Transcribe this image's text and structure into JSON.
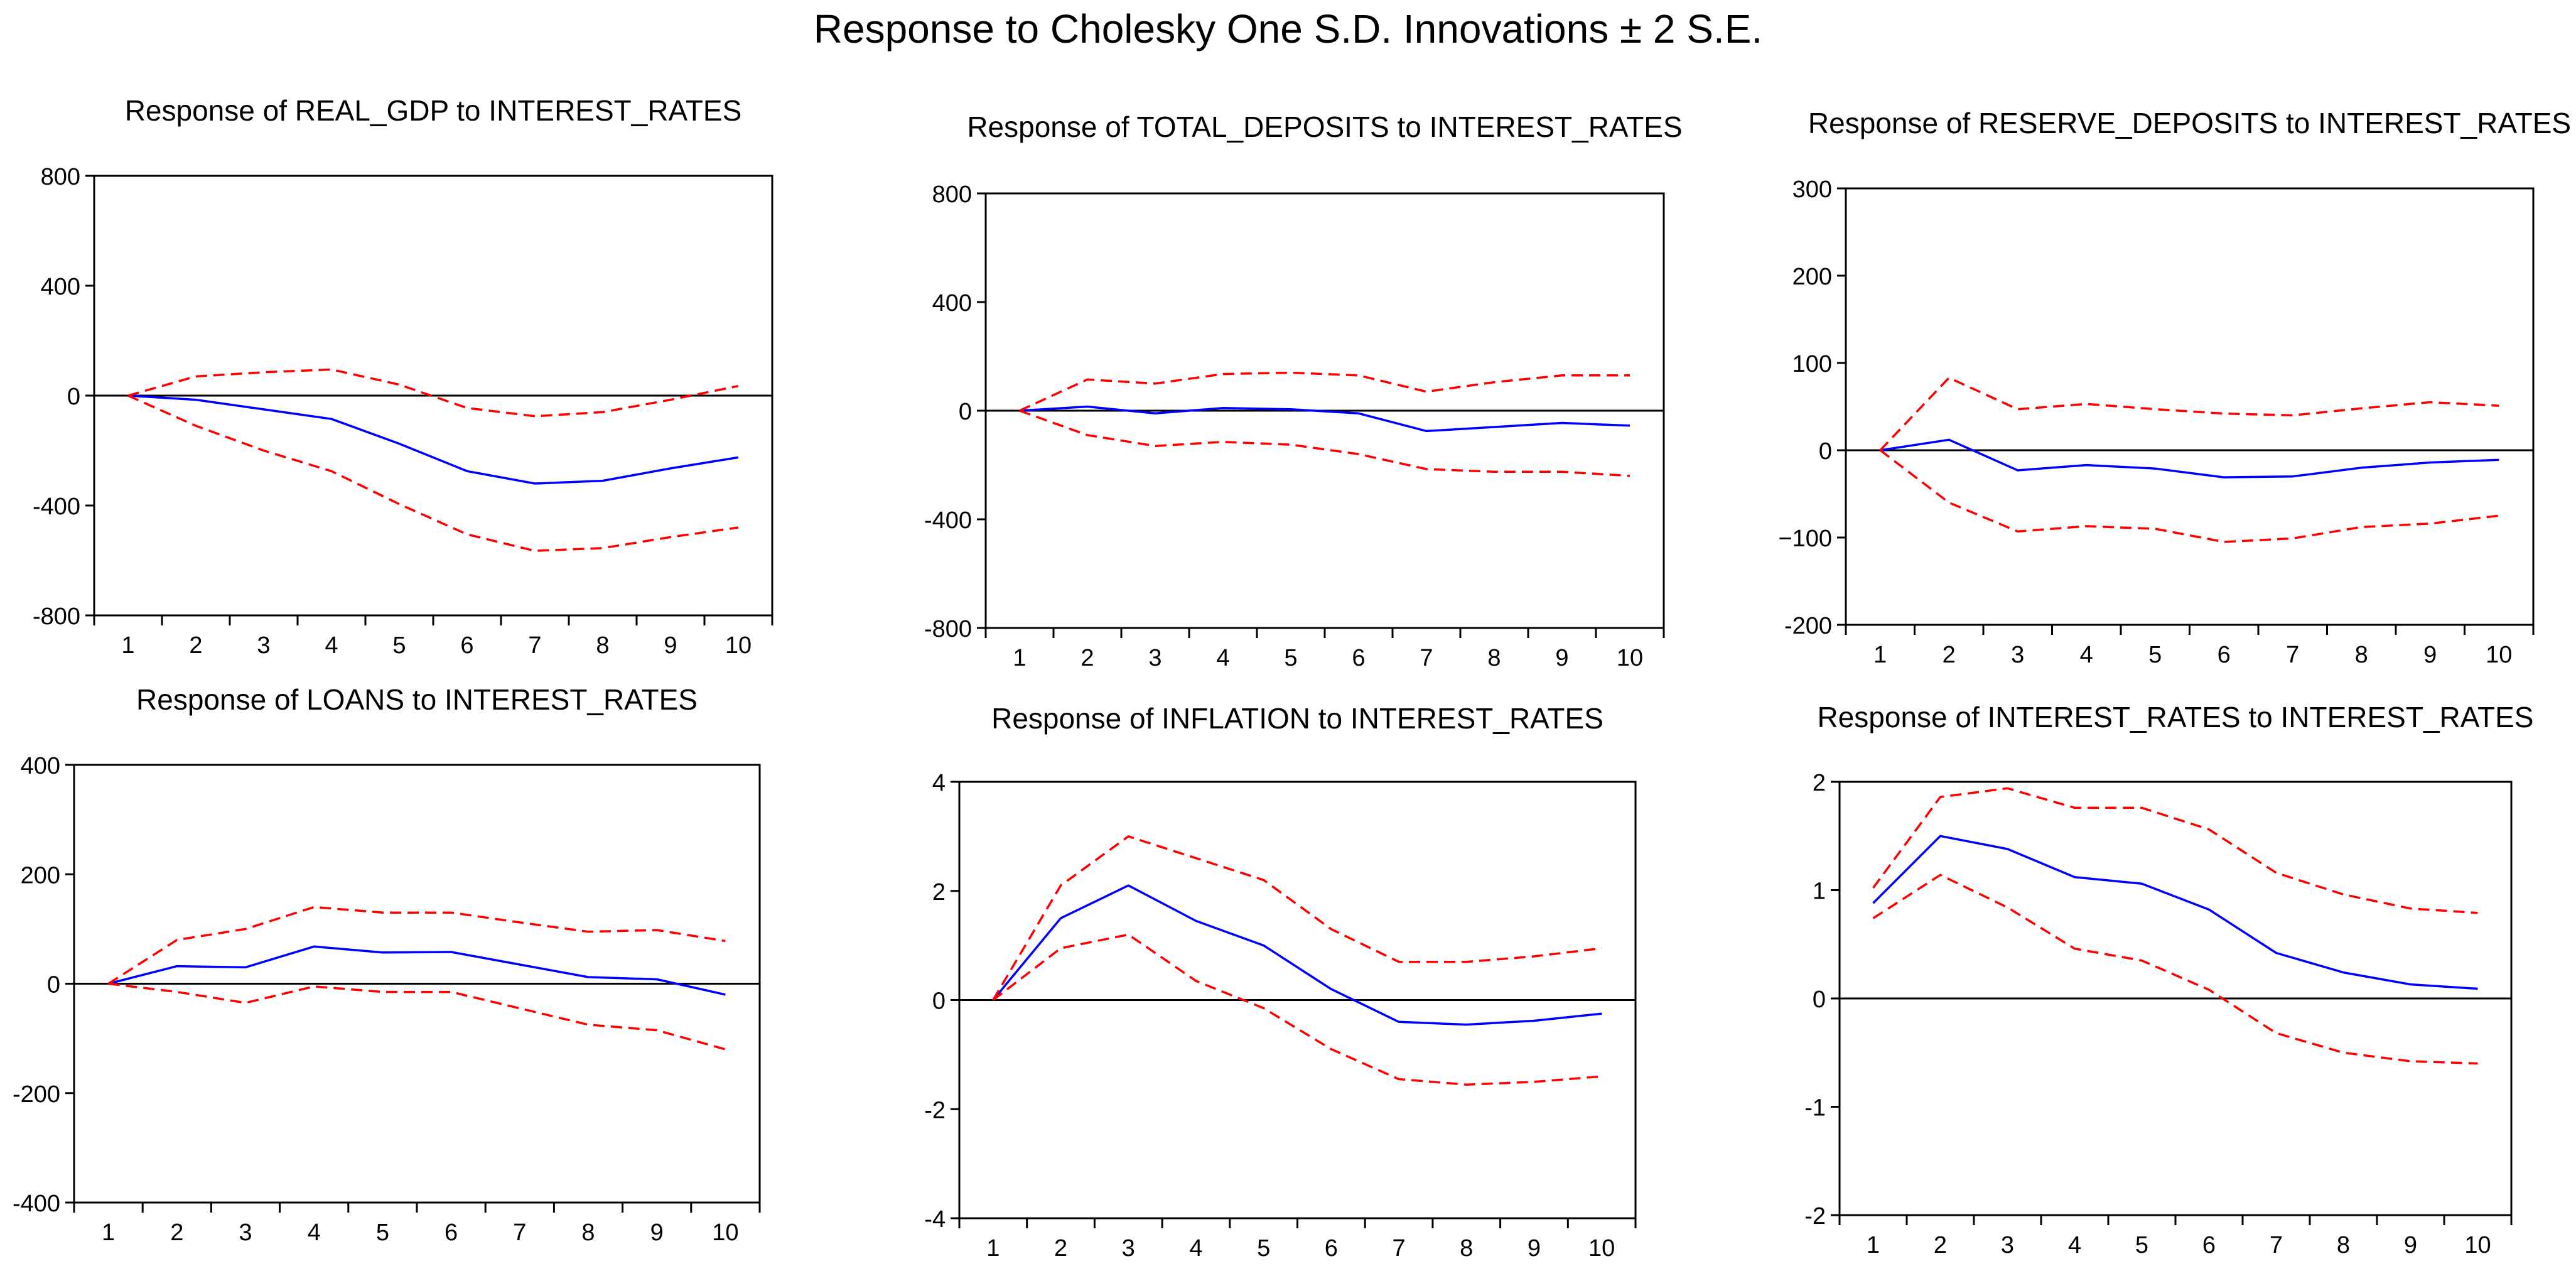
{
  "main_title": "Response to Cholesky One S.D. Innovations ± 2 S.E.",
  "colors": {
    "response": "#0000ff",
    "band": "#ff0000",
    "axis": "#000000",
    "zero": "#000000"
  },
  "chart_data": [
    {
      "type": "line",
      "title": "Response of REAL_GDP to INTEREST_RATES",
      "x": [
        1,
        2,
        3,
        4,
        5,
        6,
        7,
        8,
        9,
        10
      ],
      "ylim": [
        -800,
        800
      ],
      "yticks": [
        -800,
        -400,
        0,
        400,
        800
      ],
      "ytick_labels": [
        "-800",
        "-400",
        "0",
        "400",
        "800"
      ],
      "series": [
        {
          "name": "response",
          "values": [
            0,
            -15,
            -50,
            -85,
            -175,
            -275,
            -320,
            -310,
            -265,
            -225
          ]
        },
        {
          "name": "upper",
          "values": [
            0,
            70,
            85,
            95,
            40,
            -45,
            -75,
            -60,
            -15,
            35
          ]
        },
        {
          "name": "lower",
          "values": [
            0,
            -110,
            -200,
            -275,
            -395,
            -505,
            -565,
            -555,
            -515,
            -480
          ]
        }
      ]
    },
    {
      "type": "line",
      "title": "Response of TOTAL_DEPOSITS to INTEREST_RATES",
      "x": [
        1,
        2,
        3,
        4,
        5,
        6,
        7,
        8,
        9,
        10
      ],
      "ylim": [
        -800,
        800
      ],
      "yticks": [
        -800,
        -400,
        0,
        400,
        800
      ],
      "ytick_labels": [
        "-800",
        "-400",
        "0",
        "400",
        "800"
      ],
      "series": [
        {
          "name": "response",
          "values": [
            0,
            15,
            -10,
            10,
            5,
            -10,
            -75,
            -60,
            -45,
            -55
          ]
        },
        {
          "name": "upper",
          "values": [
            0,
            115,
            100,
            135,
            140,
            130,
            70,
            105,
            130,
            130
          ]
        },
        {
          "name": "lower",
          "values": [
            0,
            -90,
            -130,
            -115,
            -125,
            -160,
            -215,
            -225,
            -225,
            -240
          ]
        }
      ]
    },
    {
      "type": "line",
      "title": "Response of RESERVE_DEPOSITS to INTEREST_RATES",
      "x": [
        1,
        2,
        3,
        4,
        5,
        6,
        7,
        8,
        9,
        10
      ],
      "ylim": [
        -200,
        300
      ],
      "yticks": [
        -200,
        -100,
        0,
        100,
        200,
        300
      ],
      "ytick_labels": [
        "-200",
        "−100",
        "0",
        "100",
        "200",
        "300"
      ],
      "series": [
        {
          "name": "response",
          "values": [
            0,
            12,
            -23,
            -17,
            -21,
            -31,
            -30,
            -20,
            -14,
            -11
          ]
        },
        {
          "name": "upper",
          "values": [
            0,
            83,
            47,
            53,
            47,
            42,
            40,
            48,
            55,
            51
          ]
        },
        {
          "name": "lower",
          "values": [
            0,
            -60,
            -93,
            -87,
            -90,
            -105,
            -101,
            -88,
            -84,
            -75
          ]
        }
      ]
    },
    {
      "type": "line",
      "title": "Response of LOANS to INTEREST_RATES",
      "x": [
        1,
        2,
        3,
        4,
        5,
        6,
        7,
        8,
        9,
        10
      ],
      "ylim": [
        -400,
        400
      ],
      "yticks": [
        -400,
        -200,
        0,
        200,
        400
      ],
      "ytick_labels": [
        "-400",
        "-200",
        "0",
        "200",
        "400"
      ],
      "series": [
        {
          "name": "response",
          "values": [
            0,
            32,
            30,
            68,
            57,
            58,
            35,
            12,
            8,
            -20
          ]
        },
        {
          "name": "upper",
          "values": [
            0,
            80,
            100,
            140,
            130,
            130,
            112,
            95,
            98,
            78
          ]
        },
        {
          "name": "lower",
          "values": [
            0,
            -15,
            -35,
            -5,
            -15,
            -15,
            -45,
            -75,
            -85,
            -120
          ]
        }
      ]
    },
    {
      "type": "line",
      "title": "Response of INFLATION to INTEREST_RATES",
      "x": [
        1,
        2,
        3,
        4,
        5,
        6,
        7,
        8,
        9,
        10
      ],
      "ylim": [
        -4,
        4
      ],
      "yticks": [
        -4,
        -2,
        0,
        2,
        4
      ],
      "ytick_labels": [
        "-4",
        "-2",
        "0",
        "2",
        "4"
      ],
      "series": [
        {
          "name": "response",
          "values": [
            0,
            1.5,
            2.1,
            1.45,
            1.0,
            0.2,
            -0.4,
            -0.45,
            -0.38,
            -0.25
          ]
        },
        {
          "name": "upper",
          "values": [
            0,
            2.1,
            3.0,
            2.6,
            2.2,
            1.3,
            0.7,
            0.7,
            0.8,
            0.95
          ]
        },
        {
          "name": "lower",
          "values": [
            0,
            0.95,
            1.2,
            0.35,
            -0.15,
            -0.9,
            -1.45,
            -1.55,
            -1.5,
            -1.4
          ]
        }
      ]
    },
    {
      "type": "line",
      "title": "Response of INTEREST_RATES to INTEREST_RATES",
      "x": [
        1,
        2,
        3,
        4,
        5,
        6,
        7,
        8,
        9,
        10
      ],
      "ylim": [
        -2,
        2
      ],
      "yticks": [
        -2,
        -1,
        0,
        1,
        2
      ],
      "ytick_labels": [
        "-2",
        "-1",
        "0",
        "1",
        "2"
      ],
      "series": [
        {
          "name": "response",
          "values": [
            0.88,
            1.5,
            1.38,
            1.12,
            1.06,
            0.82,
            0.42,
            0.24,
            0.13,
            0.09
          ]
        },
        {
          "name": "upper",
          "values": [
            1.02,
            1.86,
            1.94,
            1.76,
            1.76,
            1.56,
            1.16,
            0.96,
            0.83,
            0.79
          ]
        },
        {
          "name": "lower",
          "values": [
            0.74,
            1.14,
            0.84,
            0.46,
            0.35,
            0.08,
            -0.32,
            -0.5,
            -0.58,
            -0.6
          ]
        }
      ]
    }
  ]
}
